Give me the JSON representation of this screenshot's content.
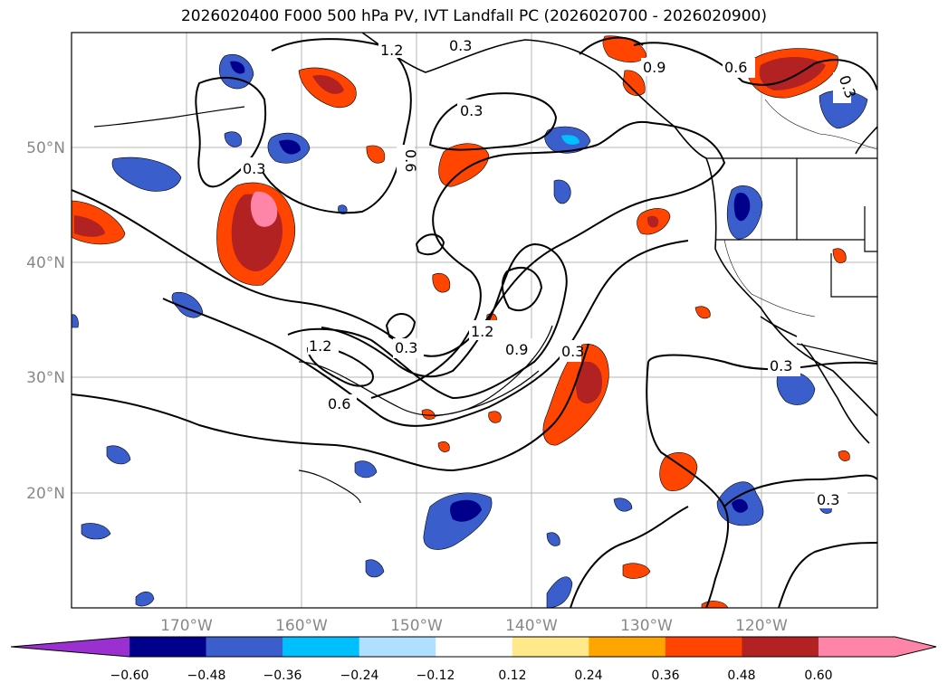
{
  "title": "2026020400 F000 500 hPa PV, IVT Landfall PC (2026020700 - 2026020900)",
  "map": {
    "lon_ticks": [
      "170°W",
      "160°W",
      "150°W",
      "140°W",
      "130°W",
      "120°W"
    ],
    "lat_ticks": [
      "50°N",
      "40°N",
      "30°N",
      "20°N"
    ],
    "contour_labels": [
      "1.2",
      "0.3",
      "0.6",
      "0.3",
      "0.9",
      "0.6",
      "0.3",
      "1.2",
      "0.3",
      "1.2",
      "0.9",
      "0.3",
      "0.6",
      "0.3",
      "0.3",
      "0.3"
    ]
  },
  "colorbar": {
    "ticks": [
      "−0.60",
      "−0.48",
      "−0.36",
      "−0.24",
      "−0.12",
      "0.12",
      "0.24",
      "0.36",
      "0.48",
      "0.60"
    ],
    "colors": [
      "#9b30d0",
      "#00008b",
      "#3a5fcd",
      "#00bfff",
      "#b0e0ff",
      "#ffffff",
      "#ffe98a",
      "#ffa500",
      "#ff4500",
      "#b22222",
      "#ff85a8",
      "#ff85a8"
    ]
  }
}
